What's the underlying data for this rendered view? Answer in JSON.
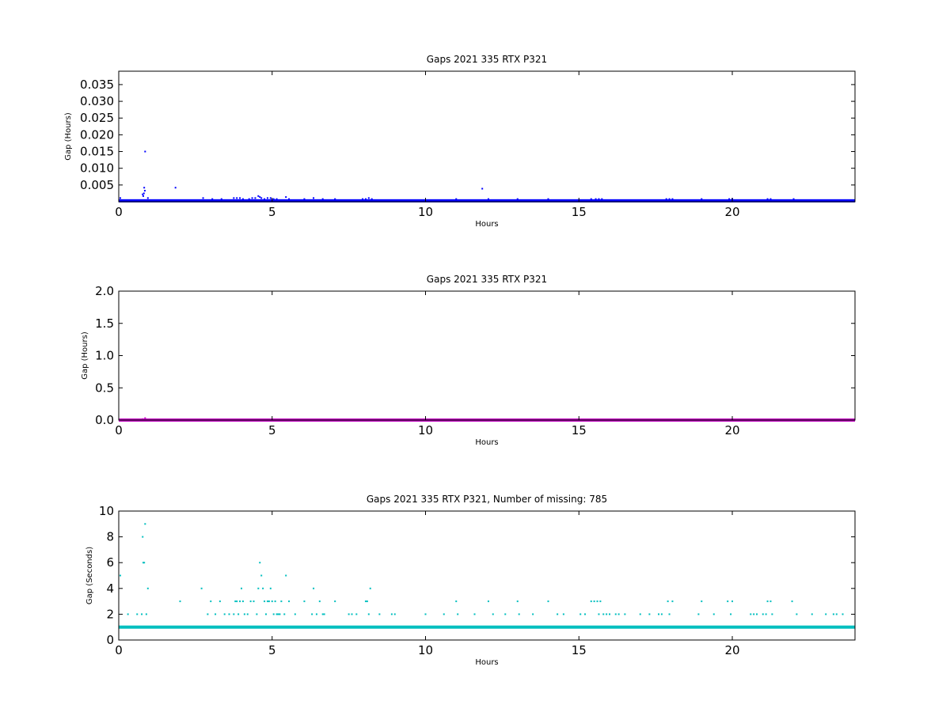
{
  "chart_data": [
    {
      "type": "scatter",
      "title": "Gaps 2021 335 RTX  P321",
      "xlabel": "Hours",
      "ylabel": "Gap (Hours)",
      "xlim": [
        0,
        24
      ],
      "ylim": [
        0,
        0.039
      ],
      "xticks": [
        "0",
        "5",
        "10",
        "15",
        "20"
      ],
      "yticks": [
        "0.005",
        "0.010",
        "0.015",
        "0.020",
        "0.025",
        "0.030",
        "0.035"
      ],
      "color": "#0000ff",
      "baseline": 0.000278,
      "series": [
        {
          "x": [
            0.05,
            0.78,
            0.8,
            0.82,
            0.83,
            0.85,
            0.86,
            0.95,
            1.85,
            2.75,
            3.05,
            3.35,
            3.75,
            3.85,
            3.95,
            4.05,
            4.25,
            4.35,
            4.45,
            4.55,
            4.6,
            4.65,
            4.75,
            4.85,
            4.95,
            5.05,
            5.15,
            5.45,
            5.55,
            6.05,
            6.35,
            6.65,
            7.05,
            7.95,
            8.05,
            8.15,
            8.25,
            11.0,
            11.85,
            12.05,
            13.0,
            14.0,
            15.4,
            15.55,
            15.65,
            15.75,
            17.85,
            17.95,
            18.05,
            19.0,
            19.9,
            20.0,
            21.15,
            21.25,
            22.0
          ],
          "y": [
            0.0011,
            0.0022,
            0.0017,
            0.0025,
            0.0042,
            0.0033,
            0.015,
            0.0011,
            0.0042,
            0.0011,
            0.0008,
            0.0008,
            0.0011,
            0.0011,
            0.0011,
            0.0008,
            0.0008,
            0.0011,
            0.0011,
            0.0017,
            0.0014,
            0.0011,
            0.0008,
            0.0011,
            0.0011,
            0.0008,
            0.0008,
            0.0014,
            0.0008,
            0.0008,
            0.0011,
            0.0008,
            0.0008,
            0.0008,
            0.0008,
            0.0011,
            0.0008,
            0.0008,
            0.0039,
            0.0008,
            0.0008,
            0.0008,
            0.0008,
            0.0008,
            0.0008,
            0.0008,
            0.0008,
            0.0008,
            0.0008,
            0.0008,
            0.0008,
            0.0008,
            0.0008,
            0.0008,
            0.0008
          ]
        }
      ]
    },
    {
      "type": "scatter",
      "title": "Gaps 2021 335 RTX  P321",
      "xlabel": "Hours",
      "ylabel": "Gap (Hours)",
      "xlim": [
        0,
        24
      ],
      "ylim": [
        0,
        2.0
      ],
      "xticks": [
        "0",
        "5",
        "10",
        "15",
        "20"
      ],
      "yticks": [
        "0.0",
        "0.5",
        "1.0",
        "1.5",
        "2.0"
      ],
      "color": "#bf00bf",
      "baseline": 0.000278,
      "series": [
        {
          "x": [
            0.78,
            0.86
          ],
          "y": [
            0.015,
            0.03
          ]
        }
      ]
    },
    {
      "type": "scatter",
      "title": "Gaps 2021 335 RTX  P321, Number of missing: 785",
      "xlabel": "Hours",
      "ylabel": "Gap (Seconds)",
      "xlim": [
        0,
        24
      ],
      "ylim": [
        0,
        10
      ],
      "xticks": [
        "0",
        "5",
        "10",
        "15",
        "20"
      ],
      "yticks": [
        "0",
        "2",
        "4",
        "6",
        "8",
        "10"
      ],
      "color": "#00bfbf",
      "baseline": 1,
      "series": [
        {
          "x": [
            0.05,
            0.3,
            0.6,
            0.75,
            0.78,
            0.8,
            0.83,
            0.86,
            0.9,
            0.95,
            2.0,
            2.7,
            2.9,
            3.0,
            3.15,
            3.3,
            3.45,
            3.6,
            3.75,
            3.8,
            3.85,
            3.9,
            3.95,
            4.0,
            4.05,
            4.1,
            4.2,
            4.3,
            4.4,
            4.5,
            4.55,
            4.6,
            4.65,
            4.7,
            4.75,
            4.8,
            4.85,
            4.9,
            4.95,
            5.0,
            5.05,
            5.1,
            5.15,
            5.2,
            5.25,
            5.3,
            5.4,
            5.45,
            5.55,
            5.75,
            6.05,
            6.3,
            6.35,
            6.45,
            6.55,
            6.65,
            6.7,
            7.05,
            7.5,
            7.6,
            7.75,
            8.05,
            8.1,
            8.15,
            8.2,
            8.5,
            8.9,
            9.0,
            10.0,
            10.6,
            11.0,
            11.05,
            11.6,
            12.05,
            12.2,
            12.6,
            13.0,
            13.05,
            13.5,
            14.0,
            14.3,
            14.5,
            15.05,
            15.2,
            15.4,
            15.5,
            15.6,
            15.65,
            15.7,
            15.8,
            15.9,
            16.0,
            16.2,
            16.3,
            16.5,
            17.0,
            17.3,
            17.6,
            17.7,
            17.9,
            17.95,
            18.05,
            18.9,
            19.0,
            19.4,
            19.85,
            19.95,
            20.0,
            20.6,
            20.7,
            20.8,
            21.0,
            21.1,
            21.15,
            21.25,
            21.3,
            21.95,
            22.1,
            22.6,
            23.05,
            23.3,
            23.4,
            23.6
          ],
          "y": [
            5,
            2,
            2,
            2,
            8,
            6,
            6,
            9,
            2,
            4,
            3,
            4,
            2,
            3,
            2,
            3,
            2,
            2,
            2,
            3,
            3,
            2,
            3,
            4,
            3,
            2,
            2,
            3,
            3,
            2,
            4,
            6,
            5,
            4,
            3,
            2,
            3,
            3,
            4,
            3,
            2,
            3,
            2,
            2,
            2,
            3,
            2,
            5,
            3,
            2,
            3,
            2,
            4,
            2,
            3,
            2,
            2,
            3,
            2,
            2,
            2,
            3,
            3,
            2,
            4,
            2,
            2,
            2,
            2,
            2,
            3,
            2,
            2,
            3,
            2,
            2,
            3,
            2,
            2,
            3,
            2,
            2,
            2,
            2,
            3,
            3,
            3,
            2,
            3,
            2,
            2,
            2,
            2,
            2,
            2,
            2,
            2,
            2,
            2,
            3,
            2,
            3,
            2,
            3,
            2,
            3,
            2,
            3,
            2,
            2,
            2,
            2,
            2,
            3,
            3,
            2,
            3,
            2,
            2,
            2,
            2,
            2,
            2
          ]
        }
      ]
    }
  ]
}
